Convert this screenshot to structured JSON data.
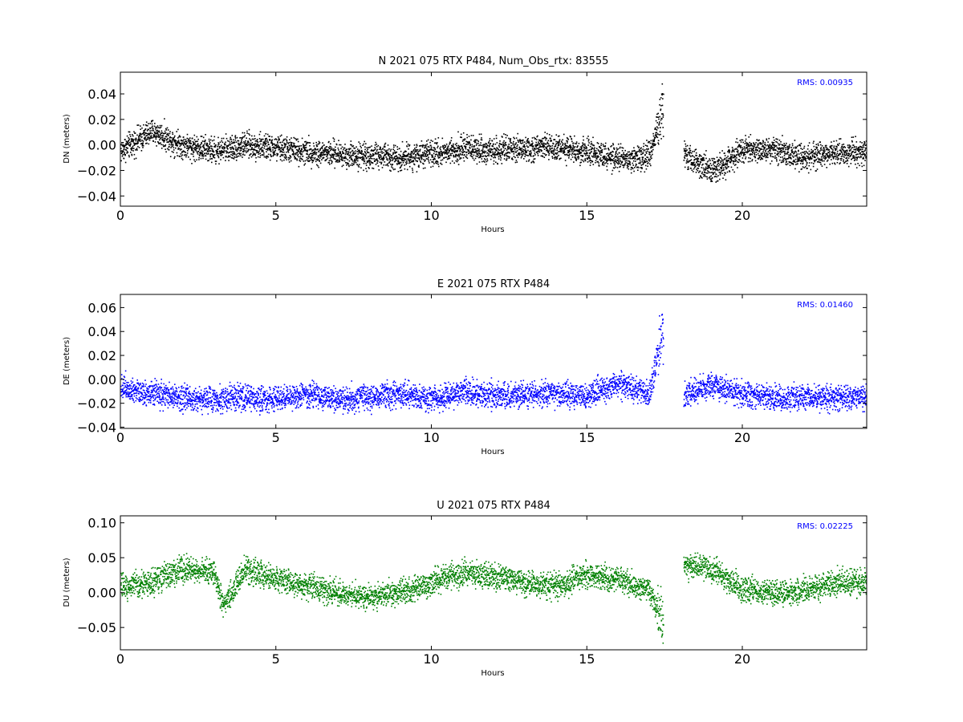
{
  "chart_data": [
    {
      "type": "scatter",
      "title": "N 2021 075 RTX  P484, Num_Obs_rtx: 83555",
      "xlabel": "Hours",
      "ylabel": "DN (meters)",
      "xlim": [
        0,
        24
      ],
      "ylim": [
        -0.048,
        0.057
      ],
      "x_ticks": [
        0,
        5,
        10,
        15,
        20
      ],
      "y_ticks": [
        -0.04,
        -0.02,
        0.0,
        0.02,
        0.04
      ],
      "y_tick_labels": [
        "−0.04",
        "−0.02",
        "0.00",
        "0.02",
        "0.04"
      ],
      "annotation": "RMS:  0.00935",
      "annotation_color": "#0000ff",
      "series_color": "#000000",
      "gap_hours": [
        17.45,
        18.1
      ],
      "series": [
        {
          "x": [
            0,
            1,
            2,
            3,
            4,
            5,
            6,
            7,
            8,
            9,
            10,
            11,
            12,
            13,
            14,
            15,
            16,
            17,
            17.4,
            18.1,
            19,
            20,
            21,
            22,
            23,
            24
          ],
          "values": [
            -0.004,
            0.011,
            0.0,
            -0.004,
            0.0,
            -0.002,
            -0.005,
            -0.007,
            -0.008,
            -0.009,
            -0.007,
            -0.002,
            -0.004,
            -0.003,
            -0.001,
            -0.005,
            -0.011,
            -0.008,
            0.03,
            -0.006,
            -0.02,
            -0.004,
            -0.003,
            -0.01,
            -0.006,
            -0.005
          ]
        }
      ]
    },
    {
      "type": "scatter",
      "title": "E 2021 075 RTX  P484",
      "xlabel": "Hours",
      "ylabel": "DE (meters)",
      "xlim": [
        0,
        24
      ],
      "ylim": [
        -0.041,
        0.071
      ],
      "x_ticks": [
        0,
        5,
        10,
        15,
        20
      ],
      "y_ticks": [
        -0.04,
        -0.02,
        0.0,
        0.02,
        0.04,
        0.06
      ],
      "y_tick_labels": [
        "−0.04",
        "−0.02",
        "0.00",
        "0.02",
        "0.04",
        "0.06"
      ],
      "annotation": "RMS:  0.01460",
      "annotation_color": "#0000ff",
      "series_color": "#0000ff",
      "gap_hours": [
        17.45,
        18.1
      ],
      "series": [
        {
          "x": [
            0,
            1,
            2,
            3,
            4,
            5,
            6,
            7,
            8,
            9,
            10,
            11,
            12,
            13,
            14,
            15,
            16,
            17,
            17.4,
            18.1,
            19,
            20,
            21,
            22,
            23,
            24
          ],
          "values": [
            -0.005,
            -0.012,
            -0.015,
            -0.016,
            -0.015,
            -0.016,
            -0.012,
            -0.017,
            -0.014,
            -0.012,
            -0.016,
            -0.01,
            -0.014,
            -0.012,
            -0.011,
            -0.013,
            -0.003,
            -0.012,
            0.04,
            -0.012,
            -0.004,
            -0.012,
            -0.016,
            -0.014,
            -0.015,
            -0.013
          ]
        }
      ]
    },
    {
      "type": "scatter",
      "title": "U 2021 075 RTX  P484",
      "xlabel": "Hours",
      "ylabel": "DU (meters)",
      "xlim": [
        0,
        24
      ],
      "ylim": [
        -0.082,
        0.11
      ],
      "x_ticks": [
        0,
        5,
        10,
        15,
        20
      ],
      "y_ticks": [
        -0.05,
        0.0,
        0.05,
        0.1
      ],
      "y_tick_labels": [
        "−0.05",
        "0.00",
        "0.05",
        "0.10"
      ],
      "annotation": "RMS:  0.02225",
      "annotation_color": "#0000ff",
      "series_color": "#008000",
      "gap_hours": [
        17.45,
        18.1
      ],
      "series": [
        {
          "x": [
            0,
            1,
            2,
            3,
            3.3,
            4,
            5,
            6,
            7,
            8,
            9,
            10,
            11,
            12,
            13,
            14,
            15,
            16,
            17,
            17.4,
            18.1,
            19,
            20,
            21,
            22,
            23,
            24
          ],
          "values": [
            0.01,
            0.015,
            0.035,
            0.03,
            -0.02,
            0.035,
            0.02,
            0.01,
            0.0,
            -0.005,
            0.0,
            0.015,
            0.03,
            0.025,
            0.015,
            0.01,
            0.025,
            0.02,
            0.005,
            -0.04,
            0.04,
            0.035,
            0.005,
            0.0,
            0.005,
            0.015,
            0.015
          ]
        }
      ]
    }
  ]
}
